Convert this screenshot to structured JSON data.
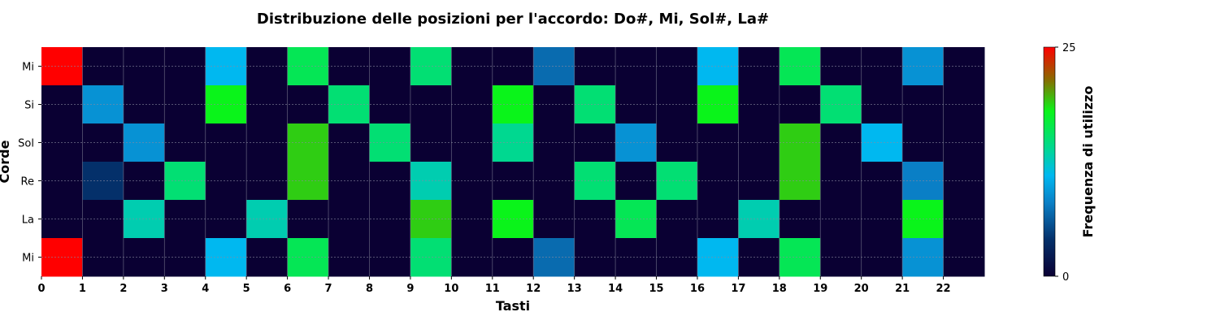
{
  "chart_data": {
    "type": "heatmap",
    "title": "Distribuzione delle posizioni per l'accordo: Do#, Mi, Sol#, La#",
    "xlabel": "Tasti",
    "ylabel": "Corde",
    "x_ticks": [
      "0",
      "1",
      "2",
      "3",
      "4",
      "5",
      "6",
      "7",
      "8",
      "9",
      "10",
      "11",
      "12",
      "13",
      "14",
      "15",
      "16",
      "17",
      "18",
      "19",
      "20",
      "21",
      "22"
    ],
    "rows": [
      "Mi",
      "Si",
      "Sol",
      "Re",
      "La",
      "Mi"
    ],
    "values": [
      [
        25,
        0,
        0,
        0,
        11,
        0,
        16,
        0,
        0,
        15,
        0,
        0,
        7,
        0,
        0,
        0,
        11,
        0,
        16,
        0,
        0,
        9,
        0
      ],
      [
        0,
        9,
        0,
        0,
        18,
        0,
        0,
        15,
        0,
        0,
        0,
        18,
        0,
        15,
        0,
        0,
        18,
        0,
        0,
        15,
        0,
        0,
        0
      ],
      [
        0,
        0,
        9,
        0,
        0,
        0,
        19,
        0,
        15,
        0,
        0,
        14,
        0,
        0,
        9,
        0,
        0,
        0,
        19,
        0,
        11,
        0,
        0
      ],
      [
        0,
        4,
        0,
        15,
        0,
        0,
        19,
        0,
        0,
        13,
        0,
        0,
        0,
        15,
        0,
        15,
        0,
        0,
        19,
        0,
        0,
        8,
        0
      ],
      [
        0,
        0,
        13,
        0,
        0,
        13,
        0,
        0,
        0,
        19,
        0,
        18,
        0,
        0,
        16,
        0,
        0,
        13,
        0,
        0,
        0,
        18,
        0
      ],
      [
        25,
        0,
        0,
        0,
        11,
        0,
        16,
        0,
        0,
        15,
        0,
        0,
        7,
        0,
        0,
        0,
        11,
        0,
        16,
        0,
        0,
        9,
        0
      ]
    ],
    "colorbar": {
      "label": "Frequenza di utilizzo",
      "min": 0,
      "max": 25,
      "ticks": [
        "0",
        "25"
      ]
    },
    "grid": true
  }
}
